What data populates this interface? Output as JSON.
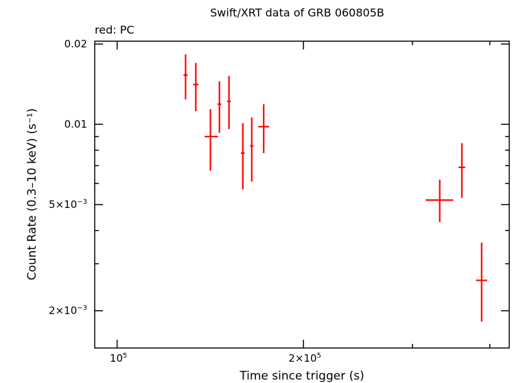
{
  "chart_data": {
    "type": "scatter",
    "title": "Swift/XRT data of GRB 060805B",
    "subtitle": "red: PC",
    "xlabel": "Time since trigger (s)",
    "ylabel": "Count Rate (0.3–10 keV) (s⁻¹)",
    "xscale": "log",
    "yscale": "log",
    "xlim": [
      92000,
      430000
    ],
    "ylim": [
      0.00145,
      0.0205
    ],
    "x_tick_labels": [
      {
        "value": 100000,
        "mantissa": "10",
        "exponent": "5"
      },
      {
        "value": 200000,
        "mantissa": "2×10",
        "exponent": "5"
      }
    ],
    "y_tick_labels": [
      {
        "value": 0.02,
        "text": "0.02"
      },
      {
        "value": 0.01,
        "text": "0.01"
      },
      {
        "value": 0.005,
        "mantissa": "5×10",
        "exponent": "−3"
      },
      {
        "value": 0.002,
        "mantissa": "2×10",
        "exponent": "−3"
      }
    ],
    "series": [
      {
        "color": "#ff0000",
        "points": [
          {
            "x": 129000,
            "y": 0.0153,
            "x_lo": 128000,
            "x_hi": 130000,
            "y_lo": 0.0124,
            "y_hi": 0.0183
          },
          {
            "x": 134000,
            "y": 0.0141,
            "x_lo": 132700,
            "x_hi": 135300,
            "y_lo": 0.0112,
            "y_hi": 0.017
          },
          {
            "x": 141500,
            "y": 0.009,
            "x_lo": 138500,
            "x_hi": 145500,
            "y_lo": 0.0067,
            "y_hi": 0.0114
          },
          {
            "x": 146300,
            "y": 0.0119,
            "x_lo": 145300,
            "x_hi": 147300,
            "y_lo": 0.0093,
            "y_hi": 0.0145
          },
          {
            "x": 151600,
            "y": 0.0122,
            "x_lo": 150600,
            "x_hi": 152600,
            "y_lo": 0.0096,
            "y_hi": 0.0152
          },
          {
            "x": 159600,
            "y": 0.0078,
            "x_lo": 158500,
            "x_hi": 160700,
            "y_lo": 0.0057,
            "y_hi": 0.0101
          },
          {
            "x": 165000,
            "y": 0.0083,
            "x_lo": 164000,
            "x_hi": 166000,
            "y_lo": 0.0061,
            "y_hi": 0.0106
          },
          {
            "x": 172500,
            "y": 0.0098,
            "x_lo": 169000,
            "x_hi": 176000,
            "y_lo": 0.0078,
            "y_hi": 0.0119
          },
          {
            "x": 332000,
            "y": 0.0052,
            "x_lo": 315000,
            "x_hi": 349000,
            "y_lo": 0.0043,
            "y_hi": 0.0062
          },
          {
            "x": 360500,
            "y": 0.0069,
            "x_lo": 356000,
            "x_hi": 365000,
            "y_lo": 0.0053,
            "y_hi": 0.0085
          },
          {
            "x": 388000,
            "y": 0.0026,
            "x_lo": 380000,
            "x_hi": 396000,
            "y_lo": 0.00182,
            "y_hi": 0.0036
          }
        ]
      }
    ],
    "grid": false,
    "legend": "none"
  }
}
